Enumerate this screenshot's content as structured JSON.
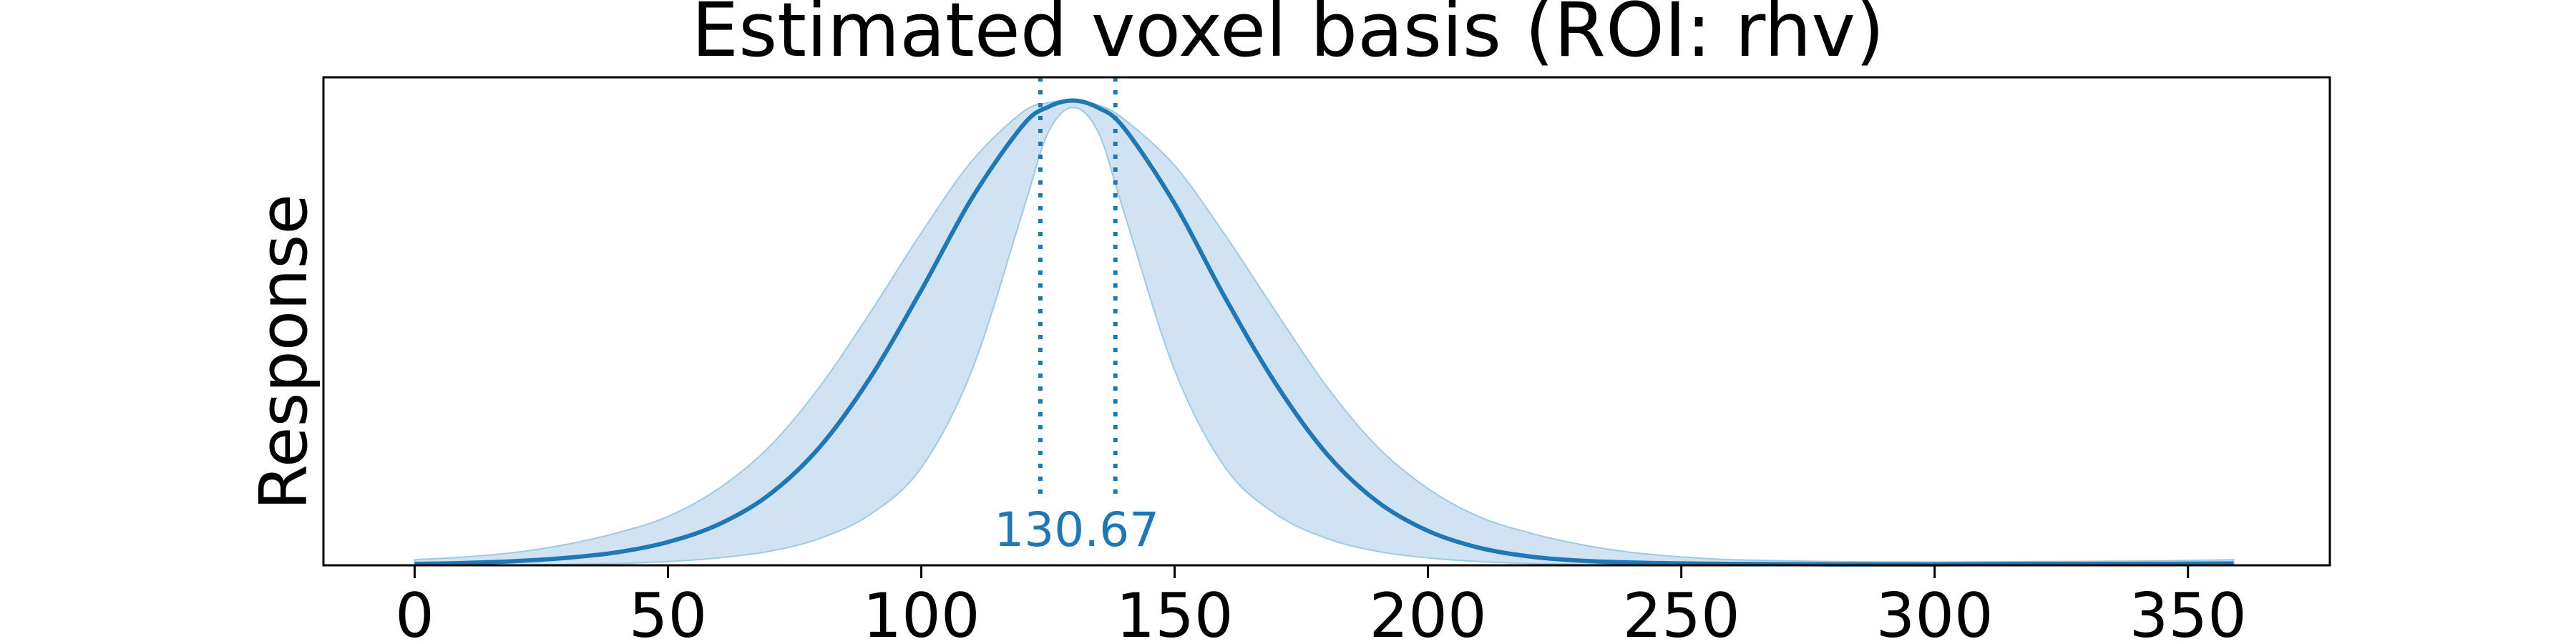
{
  "chart_data": {
    "type": "line",
    "title": "Estimated voxel basis (ROI: rhv)",
    "xlabel": "",
    "ylabel": "Response",
    "xlim": [
      -18,
      378
    ],
    "ylim": [
      0,
      1.05
    ],
    "xticks": [
      0,
      50,
      100,
      150,
      200,
      250,
      300,
      350
    ],
    "yticks_shown": false,
    "grid": false,
    "legend": "none",
    "curve": {
      "x": [
        0,
        10,
        20,
        30,
        40,
        50,
        60,
        70,
        80,
        90,
        100,
        110,
        120,
        125,
        130,
        135,
        140,
        150,
        160,
        170,
        180,
        190,
        200,
        210,
        220,
        230,
        240,
        250,
        260,
        280,
        300,
        320,
        340,
        359
      ],
      "y": [
        0.003,
        0.005,
        0.009,
        0.016,
        0.028,
        0.05,
        0.088,
        0.152,
        0.255,
        0.405,
        0.592,
        0.79,
        0.946,
        0.986,
        1.0,
        0.984,
        0.941,
        0.778,
        0.575,
        0.39,
        0.24,
        0.137,
        0.074,
        0.038,
        0.019,
        0.01,
        0.006,
        0.004,
        0.003,
        0.002,
        0.002,
        0.003,
        0.003,
        0.004
      ]
    },
    "band_upper": [
      0.012,
      0.018,
      0.028,
      0.045,
      0.07,
      0.105,
      0.165,
      0.255,
      0.385,
      0.545,
      0.715,
      0.87,
      0.975,
      0.995,
      1.0,
      0.99,
      0.96,
      0.86,
      0.71,
      0.545,
      0.385,
      0.255,
      0.165,
      0.105,
      0.07,
      0.045,
      0.028,
      0.018,
      0.012,
      0.008,
      0.007,
      0.008,
      0.009,
      0.012
    ],
    "band_lower": [
      0.0,
      0.0,
      0.001,
      0.002,
      0.004,
      0.008,
      0.016,
      0.03,
      0.058,
      0.11,
      0.21,
      0.42,
      0.76,
      0.93,
      0.985,
      0.93,
      0.76,
      0.42,
      0.21,
      0.11,
      0.058,
      0.03,
      0.016,
      0.008,
      0.004,
      0.002,
      0.001,
      0.0,
      0.0,
      0.0,
      0.0,
      0.0,
      0.0,
      0.0
    ],
    "vlines": [
      123.5,
      138.3
    ],
    "peak_label": "130.67",
    "peak_label_x": 130.67,
    "colors": {
      "line": "#1f77b4",
      "band": "#c6dbef",
      "band_edge": "#9ecae1",
      "vline": "#1f77b4",
      "peak_label": "#1f77b4",
      "axes": "#000000"
    }
  }
}
